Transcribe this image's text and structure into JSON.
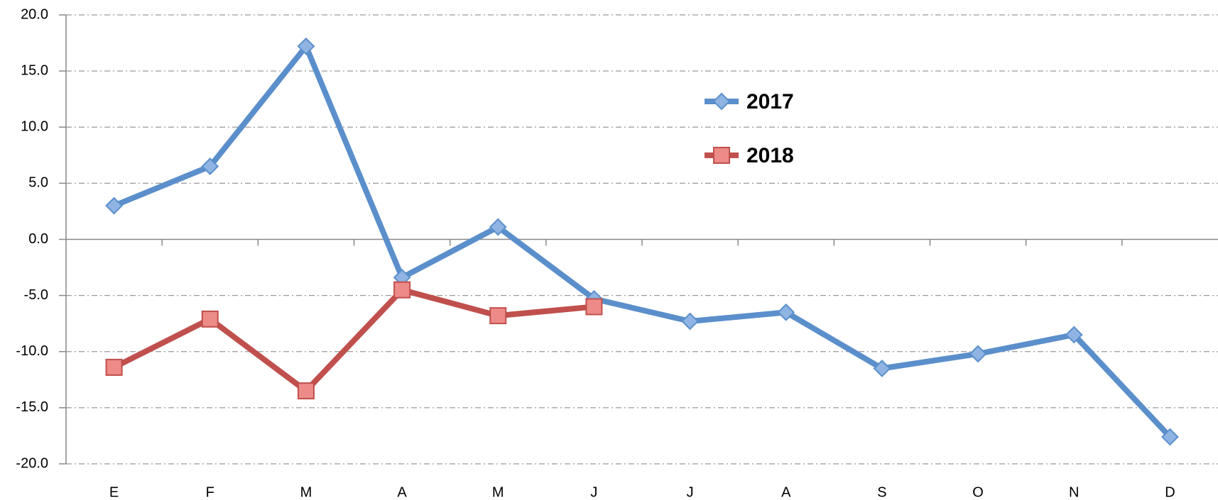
{
  "chart_data": {
    "type": "line",
    "categories": [
      "E",
      "F",
      "M",
      "A",
      "M",
      "J",
      "J",
      "A",
      "S",
      "O",
      "N",
      "D"
    ],
    "series": [
      {
        "name": "2017",
        "color": "#5b8fcb",
        "marker": "diamond",
        "values": [
          3.0,
          6.5,
          17.2,
          -3.4,
          1.1,
          -5.3,
          -7.3,
          -6.5,
          -11.5,
          -10.2,
          -8.5,
          -17.6
        ]
      },
      {
        "name": "2018",
        "color": "#c0504d",
        "marker": "square",
        "values": [
          -11.4,
          -7.1,
          -13.5,
          -4.5,
          -6.8,
          -6.0,
          null,
          null,
          null,
          null,
          null,
          null
        ]
      }
    ],
    "ylim": [
      -20,
      20
    ],
    "yticks": [
      {
        "value": -20,
        "label": "-20.0"
      },
      {
        "value": -15,
        "label": "-15.0"
      },
      {
        "value": -10,
        "label": "-10.0"
      },
      {
        "value": -5,
        "label": "-5.0"
      },
      {
        "value": 0,
        "label": "0.0"
      },
      {
        "value": 5,
        "label": "5.0"
      },
      {
        "value": 10,
        "label": "10.0"
      },
      {
        "value": 15,
        "label": "15.0"
      },
      {
        "value": 20,
        "label": "20.0"
      }
    ],
    "grid": true
  }
}
